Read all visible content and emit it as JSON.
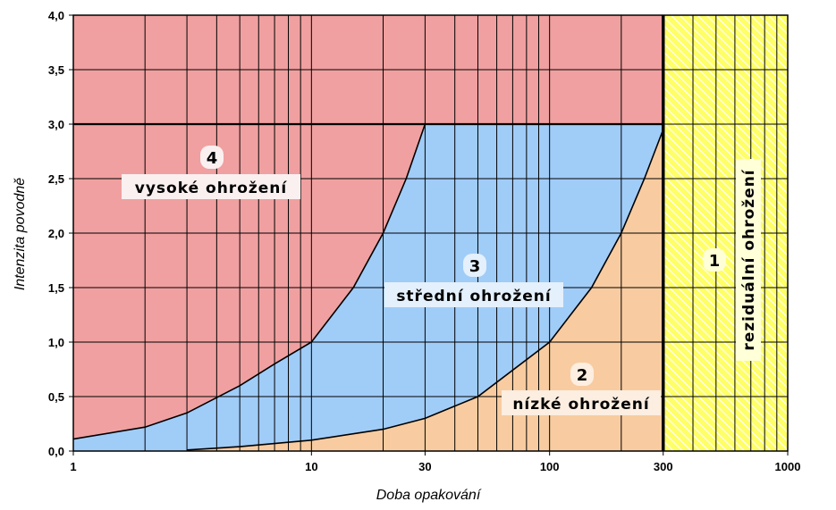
{
  "chart_data": {
    "type": "area",
    "xlabel": "Doba opakování",
    "ylabel": "Intenzita povodně",
    "x_scale": "log",
    "xlim": [
      1,
      1000
    ],
    "ylim": [
      0,
      4
    ],
    "x_ticks": [
      "1",
      "10",
      "30",
      "100",
      "300",
      "1000"
    ],
    "y_ticks": [
      "0,0",
      "0,5",
      "1,0",
      "1,5",
      "2,0",
      "2,5",
      "3,0",
      "3,5",
      "4,0"
    ],
    "grid": true,
    "upper_boundary": {
      "x": [
        1,
        2,
        3,
        5,
        7,
        10,
        15,
        20,
        25,
        30
      ],
      "y": [
        0.11,
        0.22,
        0.35,
        0.6,
        0.8,
        1.0,
        1.5,
        2.0,
        2.5,
        3.0
      ]
    },
    "lower_boundary": {
      "x": [
        3,
        5,
        10,
        20,
        30,
        50,
        100,
        150,
        200,
        250,
        300
      ],
      "y": [
        0.01,
        0.04,
        0.1,
        0.2,
        0.3,
        0.5,
        1.0,
        1.5,
        2.0,
        2.5,
        2.95
      ]
    },
    "zones": [
      {
        "number": "4",
        "label": "vysoké ohrožení",
        "color": "#F0A0A0"
      },
      {
        "number": "3",
        "label": "střední ohrožení",
        "color": "#A0CCF8"
      },
      {
        "number": "2",
        "label": "nízké ohrožení",
        "color": "#F8CCA0"
      },
      {
        "number": "1",
        "label": "reziduální ohrožení",
        "color": "#FFFF66"
      }
    ],
    "threshold_y": 3.0,
    "threshold_x": 300
  }
}
